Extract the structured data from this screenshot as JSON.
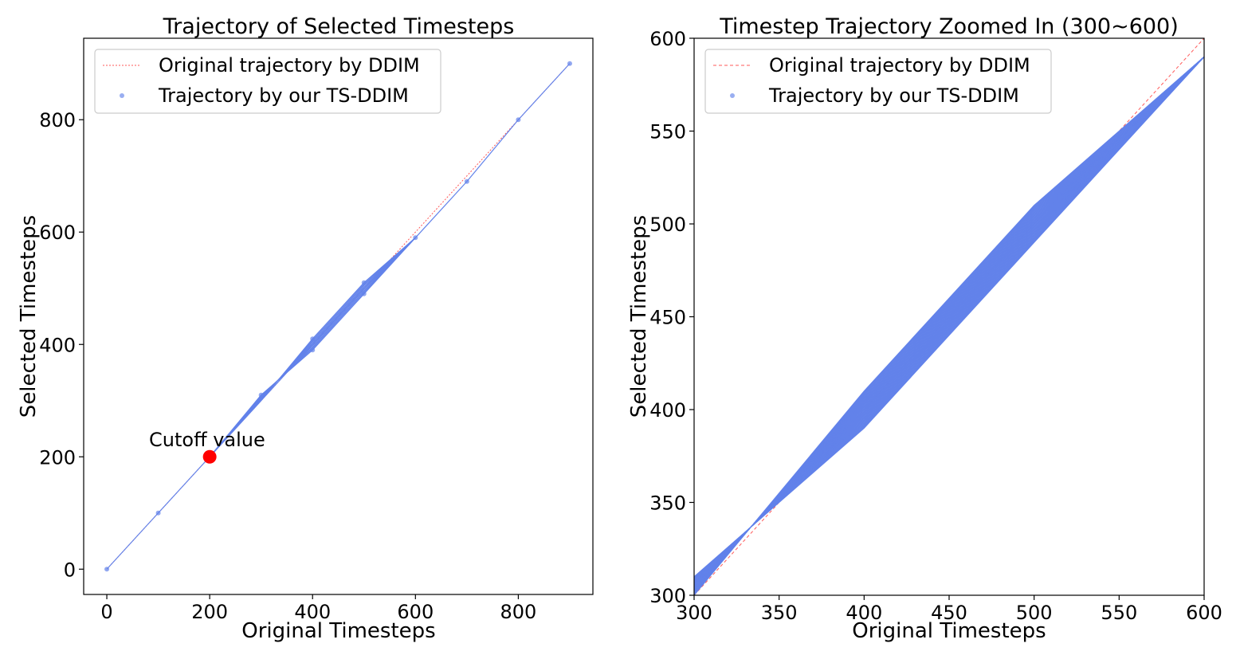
{
  "colors": {
    "ddim": "#ff5a5a",
    "tsddim": "#6282ea",
    "cutoff": "#ff0000"
  },
  "chart_data": [
    {
      "type": "line",
      "title": "Trajectory of Selected Timesteps",
      "xlabel": "Original Timesteps",
      "ylabel": "Selected Timesteps",
      "xlim": [
        -45,
        945
      ],
      "ylim": [
        -45,
        945
      ],
      "xticks": [
        0,
        200,
        400,
        600,
        800
      ],
      "yticks": [
        0,
        200,
        400,
        600,
        800
      ],
      "grid": false,
      "legend_position": "top-left",
      "legend": [
        "Original trajectory by DDIM",
        "Trajectory by our TS-DDIM"
      ],
      "series": [
        {
          "name": "Original trajectory by DDIM",
          "style": "dashed-line",
          "x": [
            0,
            100,
            200,
            300,
            400,
            500,
            600,
            700,
            800,
            900
          ],
          "y": [
            0,
            100,
            200,
            300,
            400,
            500,
            600,
            700,
            800,
            900
          ]
        },
        {
          "name": "Trajectory by our TS-DDIM",
          "style": "points-with-lines",
          "x": [
            0,
            100,
            200,
            300,
            400,
            400,
            500,
            500,
            600,
            700,
            800,
            900
          ],
          "y": [
            0,
            100,
            200,
            310,
            390,
            410,
            490,
            510,
            590,
            690,
            800,
            900
          ]
        }
      ],
      "annotation": {
        "text": "Cutoff value",
        "x": 200,
        "y": 200
      }
    },
    {
      "type": "line",
      "title": "Timestep Trajectory Zoomed In (300~600)",
      "xlabel": "Original Timesteps",
      "ylabel": "Selected Timesteps",
      "xlim": [
        300,
        600
      ],
      "ylim": [
        300,
        600
      ],
      "xticks": [
        300,
        350,
        400,
        450,
        500,
        550,
        600
      ],
      "yticks": [
        300,
        350,
        400,
        450,
        500,
        550,
        600
      ],
      "grid": false,
      "legend_position": "top-left",
      "legend": [
        "Original trajectory by DDIM",
        "Trajectory by our TS-DDIM"
      ],
      "series": [
        {
          "name": "Original trajectory by DDIM",
          "style": "dashed-line",
          "x": [
            300,
            600
          ],
          "y": [
            300,
            600
          ]
        },
        {
          "name": "Trajectory by our TS-DDIM",
          "style": "fan-of-lines",
          "x": [
            300,
            400,
            500,
            600
          ],
          "y_range": [
            [
              300,
              310
            ],
            [
              390,
              410
            ],
            [
              490,
              510
            ],
            [
              590,
              590
            ]
          ]
        }
      ]
    }
  ]
}
